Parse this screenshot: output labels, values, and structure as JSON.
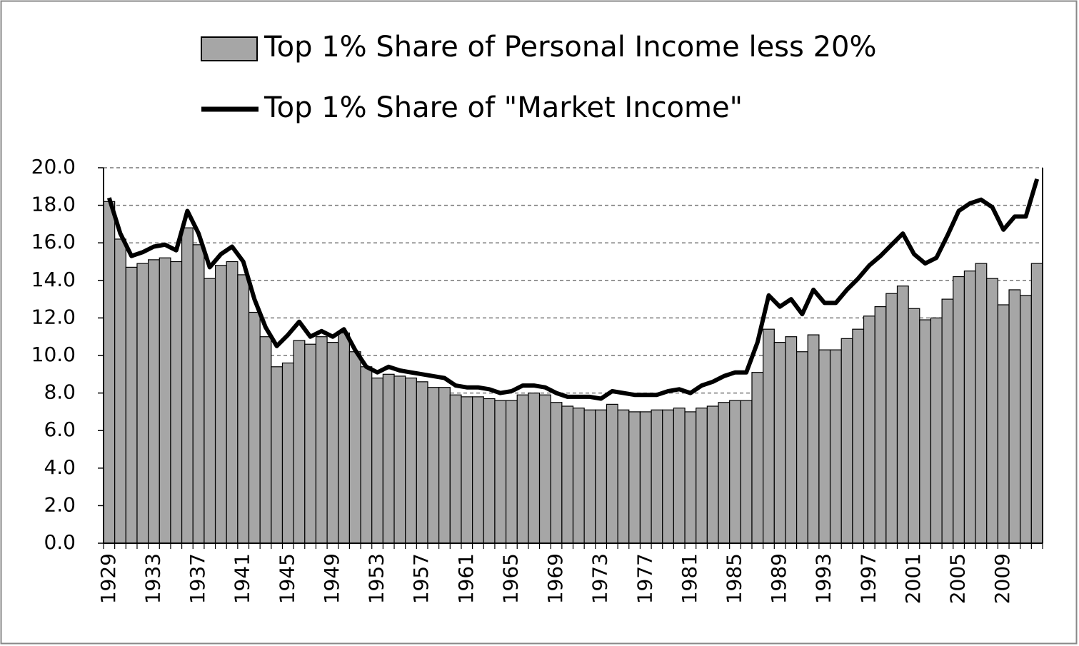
{
  "chart_data": {
    "type": "bar",
    "categories": [
      "1929",
      null,
      null,
      null,
      "1933",
      null,
      null,
      null,
      "1937",
      null,
      null,
      null,
      "1941",
      null,
      null,
      null,
      "1945",
      null,
      null,
      null,
      "1949",
      null,
      null,
      null,
      "1953",
      null,
      null,
      null,
      "1957",
      null,
      null,
      null,
      "1961",
      null,
      null,
      null,
      "1965",
      null,
      null,
      null,
      "1969",
      null,
      null,
      null,
      "1973",
      null,
      null,
      null,
      "1977",
      null,
      null,
      null,
      "1981",
      null,
      null,
      null,
      "1985",
      null,
      null,
      null,
      "1989",
      null,
      null,
      null,
      "1993",
      null,
      null,
      null,
      "1997",
      null,
      null,
      null,
      "2001",
      null,
      null,
      null,
      "2005",
      null,
      null,
      null,
      "2009",
      null,
      null,
      null
    ],
    "series": [
      {
        "name": "Top 1% Share of Personal Income less 20%",
        "type": "bar",
        "color": "#a6a6a6",
        "values": [
          18.2,
          16.2,
          14.7,
          14.9,
          15.1,
          15.2,
          15.0,
          16.8,
          15.9,
          14.1,
          14.8,
          15.0,
          14.3,
          12.3,
          11.0,
          9.4,
          9.6,
          10.8,
          10.6,
          11.0,
          10.7,
          11.2,
          10.2,
          9.4,
          8.8,
          9.0,
          8.9,
          8.8,
          8.6,
          8.3,
          8.3,
          7.9,
          7.8,
          7.8,
          7.7,
          7.6,
          7.6,
          7.9,
          8.0,
          7.9,
          7.5,
          7.3,
          7.2,
          7.1,
          7.1,
          7.4,
          7.1,
          7.0,
          7.0,
          7.1,
          7.1,
          7.2,
          7.0,
          7.2,
          7.3,
          7.5,
          7.6,
          7.6,
          9.1,
          11.4,
          10.7,
          11.0,
          10.2,
          11.1,
          10.3,
          10.3,
          10.9,
          11.4,
          12.1,
          12.6,
          13.3,
          13.7,
          12.5,
          11.9,
          12.0,
          13.0,
          14.2,
          14.5,
          14.9,
          14.1,
          12.7,
          13.5,
          13.2,
          14.9
        ]
      },
      {
        "name": "Top 1% Share of \"Market Income\"",
        "type": "line",
        "color": "#000000",
        "values": [
          18.4,
          16.5,
          15.3,
          15.5,
          15.8,
          15.9,
          15.6,
          17.7,
          16.5,
          14.7,
          15.4,
          15.8,
          15.0,
          13.0,
          11.5,
          10.5,
          11.1,
          11.8,
          11.0,
          11.3,
          11.0,
          11.4,
          10.3,
          9.4,
          9.1,
          9.4,
          9.2,
          9.1,
          9.0,
          8.9,
          8.8,
          8.4,
          8.3,
          8.3,
          8.2,
          8.0,
          8.1,
          8.4,
          8.4,
          8.3,
          8.0,
          7.8,
          7.8,
          7.8,
          7.7,
          8.1,
          8.0,
          7.9,
          7.9,
          7.9,
          8.1,
          8.2,
          8.0,
          8.4,
          8.6,
          8.9,
          9.1,
          9.1,
          10.7,
          13.2,
          12.6,
          13.0,
          12.2,
          13.5,
          12.8,
          12.8,
          13.5,
          14.1,
          14.8,
          15.3,
          15.9,
          16.5,
          15.4,
          14.9,
          15.2,
          16.4,
          17.7,
          18.1,
          18.3,
          17.9,
          16.7,
          17.4,
          17.4,
          19.4
        ]
      }
    ],
    "ylim": [
      0,
      20
    ],
    "yticks": [
      {
        "value": 0,
        "label": "0.0"
      },
      {
        "value": 2,
        "label": "2.0"
      },
      {
        "value": 4,
        "label": "4.0"
      },
      {
        "value": 6,
        "label": "6.0"
      },
      {
        "value": 8,
        "label": "8.0"
      },
      {
        "value": 10,
        "label": "10.0"
      },
      {
        "value": 12,
        "label": "12.0"
      },
      {
        "value": 14,
        "label": "14.0"
      },
      {
        "value": 16,
        "label": "16.0"
      },
      {
        "value": 18,
        "label": "18.0"
      },
      {
        "value": 20,
        "label": "20.0"
      }
    ],
    "grid": true
  }
}
